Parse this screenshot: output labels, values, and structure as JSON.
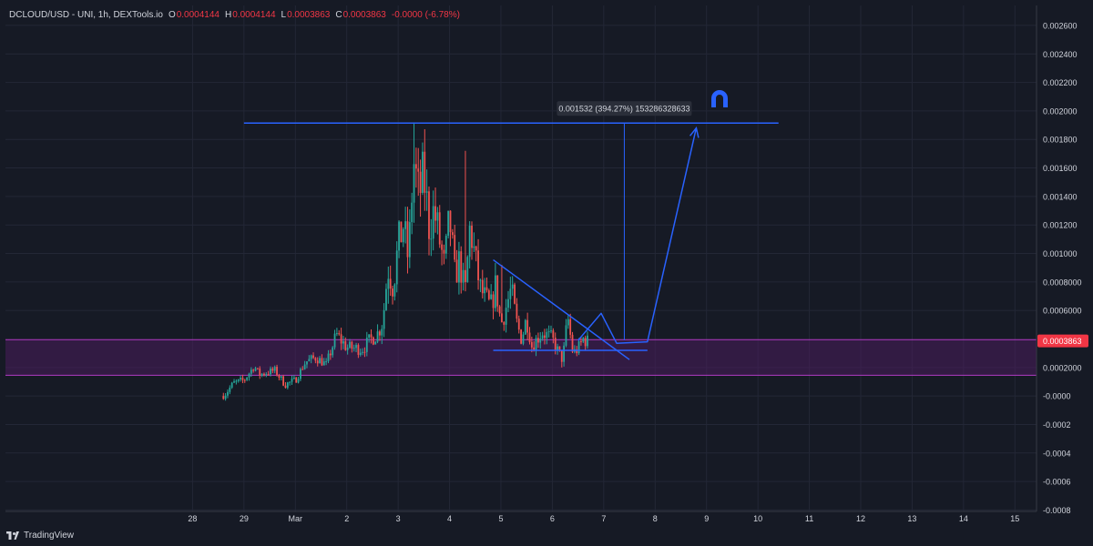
{
  "header": {
    "symbol": "DCLOUD/USD - UNI, 1h, DEXTools.io",
    "open_label": "O",
    "open": "0.0004144",
    "high_label": "H",
    "high": "0.0004144",
    "low_label": "L",
    "low": "0.0003863",
    "close_label": "C",
    "close": "0.0003863",
    "change": "-0.0000 (-6.78%)"
  },
  "footer": {
    "brand": "TradingView"
  },
  "colors": {
    "background": "#161a25",
    "up": "#26a69a",
    "down": "#ef5350",
    "drawing": "#2962ff",
    "zone_fill": "#4a1d5c",
    "zone_border": "#b13ac4",
    "price_badge": "#f23645"
  },
  "chart_data": {
    "type": "candlestick",
    "x_tick_labels": [
      "28",
      "29",
      "Mar",
      "2",
      "3",
      "4",
      "5",
      "6",
      "7",
      "8",
      "9",
      "10",
      "11",
      "12",
      "13",
      "14",
      "15"
    ],
    "x_tick_days": [
      -1,
      0,
      1,
      2,
      3,
      4,
      5,
      6,
      7,
      8,
      9,
      10,
      11,
      12,
      13,
      14,
      15
    ],
    "y_tick_labels": [
      "0.002600",
      "0.002400",
      "0.002200",
      "0.002000",
      "0.001800",
      "0.001600",
      "0.001400",
      "0.001200",
      "0.001000",
      "0.0008000",
      "0.0006000",
      "0.0002000",
      "-0.0000",
      "-0.0002",
      "-0.0004",
      "-0.0006",
      "-0.0008"
    ],
    "y_tick_values": [
      0.0026,
      0.0024,
      0.0022,
      0.002,
      0.0018,
      0.0016,
      0.0014,
      0.0012,
      0.001,
      0.0008,
      0.0006,
      0.0002,
      0.0,
      -0.0002,
      -0.0004,
      -0.0006,
      -0.0008
    ],
    "ylim": [
      -0.00081,
      0.00274
    ],
    "xlim_days": [
      -4.64,
      15.42
    ],
    "grid": true,
    "current_price": "0.0003863",
    "current_price_value": 0.0003863,
    "support_zone": [
      0.000145,
      0.000395
    ],
    "price_path": [
      [
        -0.4,
        0.0
      ],
      [
        -0.2,
        9e-05
      ],
      [
        0.0,
        0.00011
      ],
      [
        0.2,
        0.00021
      ],
      [
        0.3,
        0.00015
      ],
      [
        0.6,
        0.00018
      ],
      [
        0.8,
        8e-05
      ],
      [
        1.0,
        0.00011
      ],
      [
        1.2,
        0.00024
      ],
      [
        1.4,
        0.00027
      ],
      [
        1.6,
        0.00022
      ],
      [
        1.8,
        0.00043
      ],
      [
        2.0,
        0.00034
      ],
      [
        2.3,
        0.00033
      ],
      [
        2.5,
        0.00041
      ],
      [
        2.6,
        0.00044
      ],
      [
        2.7,
        0.00052
      ],
      [
        2.8,
        0.0009
      ],
      [
        2.9,
        0.00077
      ],
      [
        3.0,
        0.00105
      ],
      [
        3.1,
        0.0012
      ],
      [
        3.2,
        0.00095
      ],
      [
        3.3,
        0.00165
      ],
      [
        3.4,
        0.0014
      ],
      [
        3.5,
        0.00155
      ],
      [
        3.6,
        0.0012
      ],
      [
        3.7,
        0.0013
      ],
      [
        3.8,
        0.0011
      ],
      [
        3.9,
        0.0009
      ],
      [
        4.0,
        0.00125
      ],
      [
        4.1,
        0.00085
      ],
      [
        4.2,
        0.00095
      ],
      [
        4.3,
        0.0007
      ],
      [
        4.4,
        0.0012
      ],
      [
        4.5,
        0.00095
      ],
      [
        4.6,
        0.00075
      ],
      [
        4.7,
        0.00068
      ],
      [
        4.8,
        0.00062
      ],
      [
        4.9,
        0.00078
      ],
      [
        5.0,
        0.0005
      ],
      [
        5.2,
        0.00075
      ],
      [
        5.3,
        0.00052
      ],
      [
        5.4,
        0.0004
      ],
      [
        5.5,
        0.00055
      ],
      [
        5.6,
        0.00035
      ],
      [
        5.8,
        0.00045
      ],
      [
        6.0,
        0.0004
      ],
      [
        6.1,
        0.00032
      ],
      [
        6.2,
        0.00025
      ],
      [
        6.3,
        0.00055
      ],
      [
        6.4,
        0.0003
      ],
      [
        6.5,
        0.00033
      ],
      [
        6.6,
        0.0004
      ],
      [
        6.7,
        0.00038
      ]
    ],
    "price_spikes": [
      [
        3.3,
        0.00192
      ],
      [
        3.5,
        0.00187
      ],
      [
        4.3,
        0.00172
      ],
      [
        5.0,
        0.00092
      ],
      [
        6.2,
        0.0002
      ],
      [
        5.7,
        0.00028
      ]
    ],
    "drawings": {
      "target_line": {
        "value": 0.001915,
        "from_day": 0.0,
        "to_day": 10.4
      },
      "falling_trendline": {
        "from": [
          4.85,
          0.000955
        ],
        "to": [
          7.5,
          0.000255
        ]
      },
      "support_line": {
        "value": 0.00032,
        "from_day": 4.85,
        "to_day": 7.85
      },
      "measure": {
        "day": 7.4,
        "from_value": 0.00039,
        "to_value": 0.001915,
        "label": "0.001532 (394.27%) 153286328633"
      },
      "projection": [
        [
          6.5,
          0.00039
        ],
        [
          6.95,
          0.00058
        ],
        [
          7.25,
          0.00037
        ],
        [
          7.85,
          0.00038
        ],
        [
          8.8,
          0.00188
        ]
      ]
    }
  }
}
